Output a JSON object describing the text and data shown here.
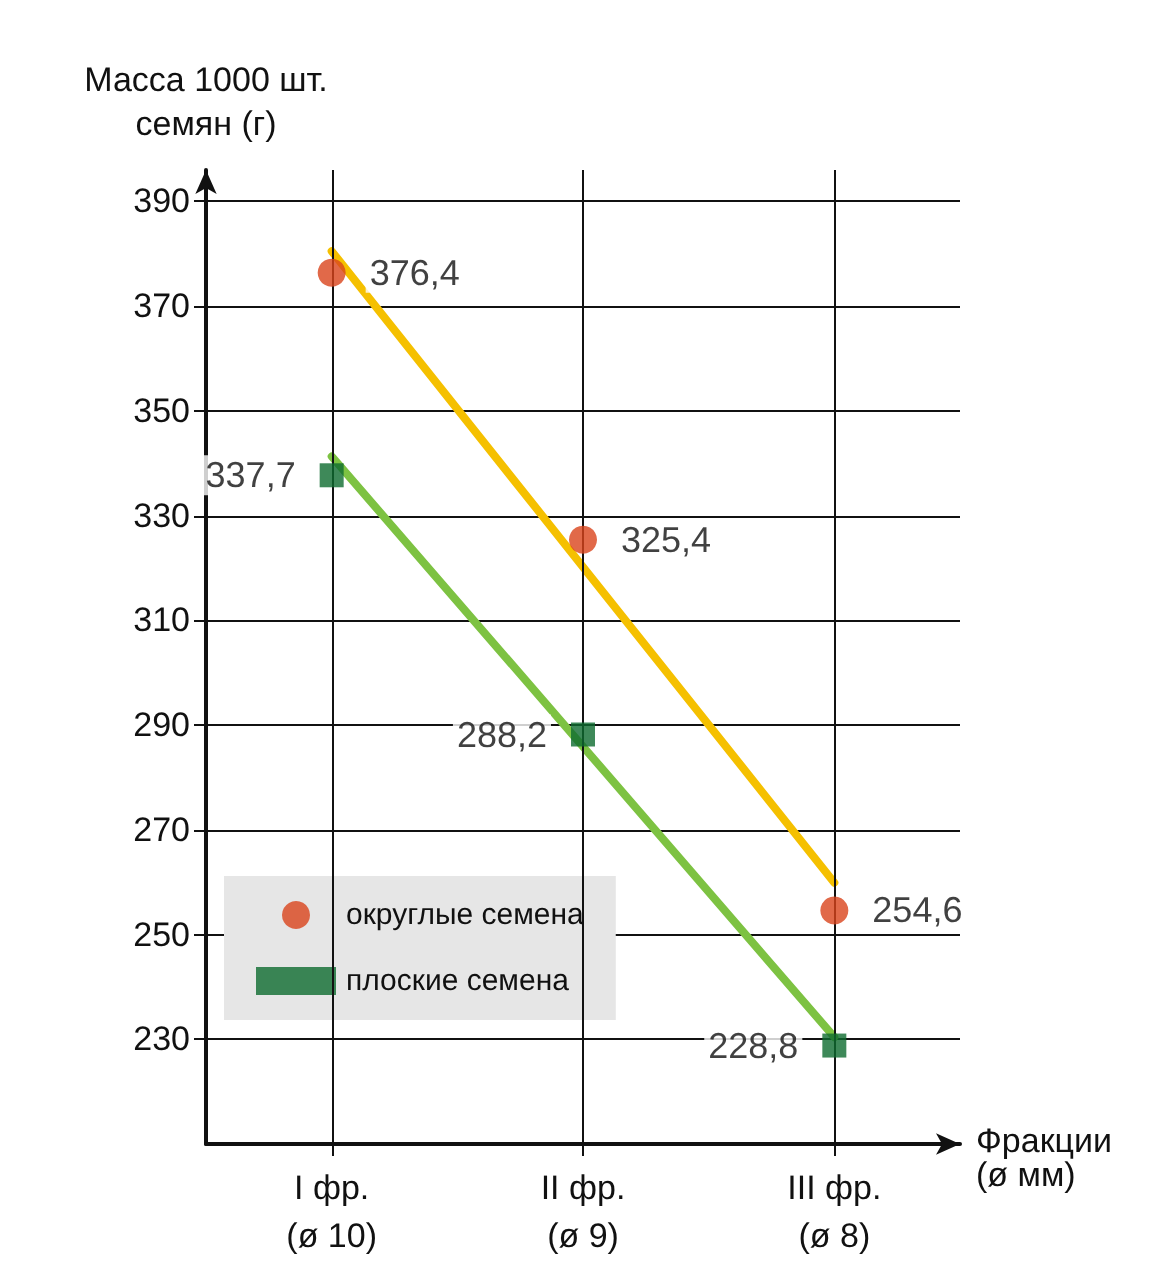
{
  "chart_data": {
    "type": "scatter",
    "ylabel": "Масса 1000 шт.\nсемян (г)",
    "xlabel": "Фракции\n(ø мм)",
    "categories": [
      "I фр.\n(ø 10)",
      "II фр.\n(ø 9)",
      "III фр.\n(ø 8)"
    ],
    "ylim": [
      210,
      396
    ],
    "yticks": [
      230,
      250,
      270,
      290,
      310,
      330,
      350,
      370,
      390
    ],
    "grid": true,
    "legend": "bottom left",
    "series": [
      {
        "type": "line",
        "color": "#f5c000",
        "values": [
          380.5,
          320.2,
          259.9
        ],
        "marker": "none"
      },
      {
        "type": "line",
        "color": "#7dc242",
        "values": [
          341.3,
          285.9,
          230.4
        ],
        "marker": "none"
      },
      {
        "name": "округлые семена",
        "color": "#d9441c",
        "values": [
          376.4,
          325.4,
          254.6
        ],
        "marker": "circle",
        "value_labels": [
          "376,4",
          "325,4",
          "254,6"
        ]
      },
      {
        "name": "плоские семена",
        "color": "#0e6b2f",
        "values": [
          337.7,
          288.2,
          228.8
        ],
        "marker": "square",
        "value_labels": [
          "337,7",
          "288,2",
          "228,8"
        ]
      }
    ]
  }
}
